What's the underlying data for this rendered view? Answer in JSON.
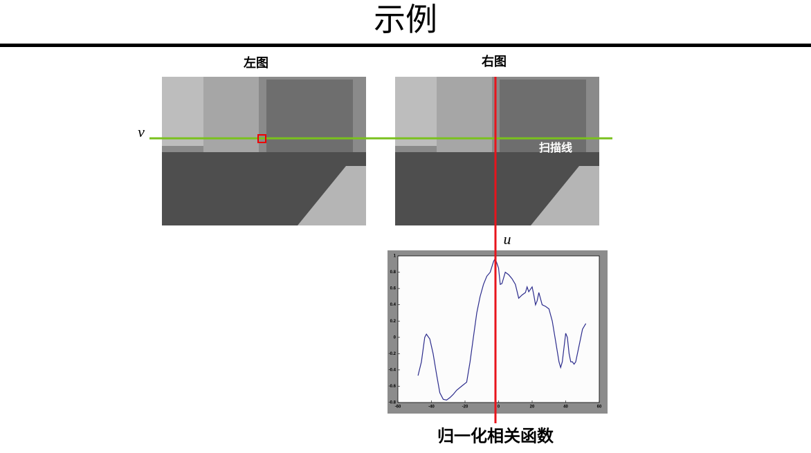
{
  "title": "示例",
  "left_image": {
    "label": "左图"
  },
  "right_image": {
    "label": "右图",
    "scanline_label": "扫描线"
  },
  "v_label": "v",
  "u_label": "u",
  "caption": "归一化相关函数",
  "plot": {
    "type": "line",
    "xlim": [
      -60,
      60
    ],
    "ylim": [
      -0.8,
      1
    ],
    "xticks": [
      -60,
      -40,
      -20,
      0,
      20,
      40,
      60
    ],
    "yticks": [
      -0.8,
      -0.6,
      -0.4,
      -0.2,
      0,
      0.2,
      0.4,
      0.6,
      0.8,
      1
    ],
    "color": "#2b2b8c",
    "x": [
      -48,
      -46,
      -44,
      -43,
      -41,
      -39,
      -37,
      -35,
      -33,
      -31,
      -29,
      -27,
      -25,
      -22,
      -19,
      -17,
      -15,
      -13,
      -11,
      -9,
      -7,
      -5,
      -3,
      -2,
      0,
      1,
      2,
      4,
      6,
      8,
      10,
      12,
      14,
      16,
      17,
      18,
      20,
      21,
      22,
      23,
      24,
      26,
      28,
      30,
      32,
      34,
      36,
      37,
      38,
      40,
      41,
      42,
      43,
      44,
      45,
      46,
      48,
      50,
      52
    ],
    "values": [
      -0.47,
      -0.3,
      0.0,
      0.04,
      -0.02,
      -0.2,
      -0.45,
      -0.68,
      -0.76,
      -0.77,
      -0.74,
      -0.7,
      -0.65,
      -0.6,
      -0.55,
      -0.3,
      0.0,
      0.3,
      0.5,
      0.65,
      0.75,
      0.8,
      0.93,
      0.97,
      0.85,
      0.65,
      0.66,
      0.8,
      0.77,
      0.72,
      0.65,
      0.48,
      0.52,
      0.55,
      0.62,
      0.56,
      0.62,
      0.52,
      0.4,
      0.45,
      0.55,
      0.4,
      0.38,
      0.35,
      0.2,
      -0.05,
      -0.3,
      -0.37,
      -0.3,
      0.05,
      0.0,
      -0.2,
      -0.3,
      -0.3,
      -0.33,
      -0.3,
      -0.1,
      0.1,
      0.17
    ]
  }
}
